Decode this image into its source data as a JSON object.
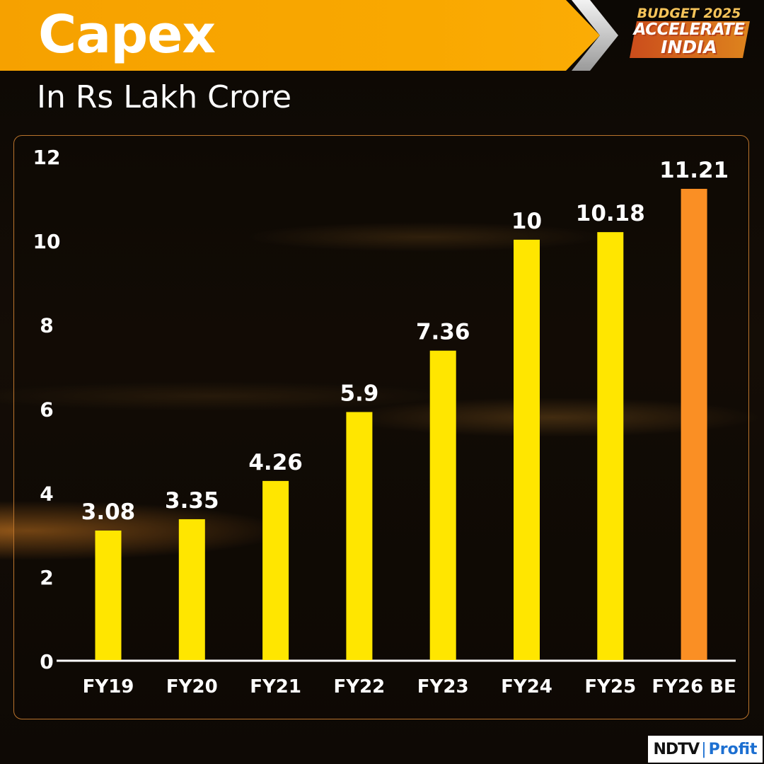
{
  "header": {
    "title": "Capex",
    "subtitle": "In Rs Lakh Crore"
  },
  "branding": {
    "budget_line1": "BUDGET 2025",
    "budget_line2": "ACCELERATE",
    "budget_line3": "INDIA",
    "ndtv_left": "NDTV",
    "ndtv_right": "Profit"
  },
  "colors": {
    "banner": "#f9a800",
    "bar": "#ffe600",
    "bar_highlight": "#fa8f24",
    "text": "#ffffff",
    "panel_border": "#b9732c"
  },
  "chart_data": {
    "type": "bar",
    "title": "Capex",
    "subtitle": "In Rs Lakh Crore",
    "categories": [
      "FY19",
      "FY20",
      "FY21",
      "FY22",
      "FY23",
      "FY24",
      "FY25",
      "FY26 BE"
    ],
    "values": [
      3.08,
      3.35,
      4.26,
      5.9,
      7.36,
      10,
      10.18,
      11.21
    ],
    "value_labels": [
      "3.08",
      "3.35",
      "4.26",
      "5.9",
      "7.36",
      "10",
      "10.18",
      "11.21"
    ],
    "highlight_index": 7,
    "y_ticks": [
      0,
      2,
      4,
      6,
      8,
      10,
      12
    ],
    "ylim": [
      0,
      12
    ],
    "grid": false,
    "legend": "none"
  }
}
